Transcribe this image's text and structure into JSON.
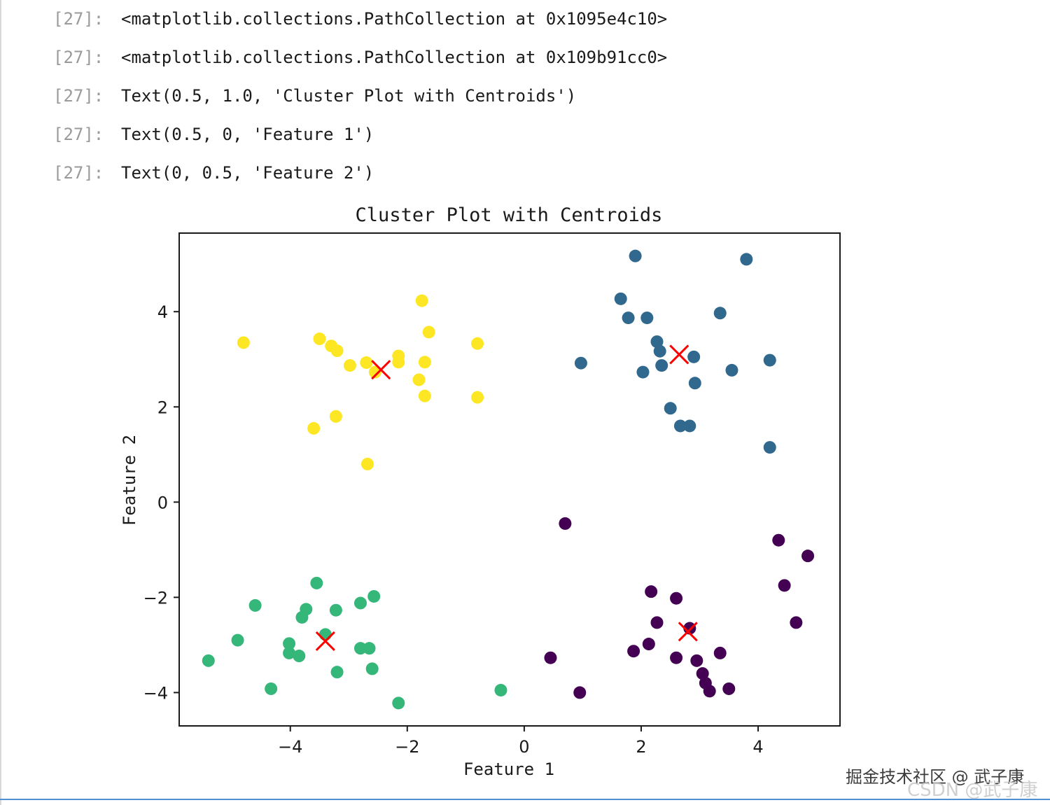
{
  "cell_outputs": [
    {
      "prompt": "[27]:",
      "text": "<matplotlib.collections.PathCollection at 0x1095e4c10>"
    },
    {
      "prompt": "[27]:",
      "text": "<matplotlib.collections.PathCollection at 0x109b91cc0>"
    },
    {
      "prompt": "[27]:",
      "text": "Text(0.5, 1.0, 'Cluster Plot with Centroids')"
    },
    {
      "prompt": "[27]:",
      "text": "Text(0.5, 0, 'Feature 1')"
    },
    {
      "prompt": "[27]:",
      "text": "Text(0, 0.5, 'Feature 2')"
    }
  ],
  "chart_data": {
    "type": "scatter",
    "title": "Cluster Plot with Centroids",
    "xlabel": "Feature 1",
    "ylabel": "Feature 2",
    "xlim": [
      -5.9,
      5.4
    ],
    "ylim": [
      -4.7,
      5.65
    ],
    "xticks": [
      -4,
      -2,
      0,
      2,
      4
    ],
    "yticks": [
      -4,
      -2,
      0,
      2,
      4
    ],
    "xtick_labels": [
      "−4",
      "−2",
      "0",
      "2",
      "4"
    ],
    "ytick_labels": [
      "−4",
      "−2",
      "0",
      "2",
      "4"
    ],
    "grid": false,
    "series": [
      {
        "color": "#fde725",
        "points": [
          [
            -4.8,
            3.35
          ],
          [
            -3.5,
            3.43
          ],
          [
            -3.3,
            3.28
          ],
          [
            -3.2,
            3.18
          ],
          [
            -2.98,
            2.87
          ],
          [
            -2.7,
            2.93
          ],
          [
            -2.55,
            2.73
          ],
          [
            -2.15,
            3.07
          ],
          [
            -2.15,
            2.94
          ],
          [
            -1.75,
            4.23
          ],
          [
            -1.63,
            3.57
          ],
          [
            -1.7,
            2.94
          ],
          [
            -1.8,
            2.57
          ],
          [
            -1.7,
            2.23
          ],
          [
            -0.8,
            3.33
          ],
          [
            -0.8,
            2.2
          ],
          [
            -3.6,
            1.55
          ],
          [
            -3.22,
            1.8
          ],
          [
            -2.68,
            0.8
          ]
        ]
      },
      {
        "color": "#31688e",
        "points": [
          [
            1.9,
            5.17
          ],
          [
            3.8,
            5.1
          ],
          [
            1.65,
            4.27
          ],
          [
            1.78,
            3.87
          ],
          [
            2.1,
            3.87
          ],
          [
            3.35,
            3.97
          ],
          [
            2.27,
            3.37
          ],
          [
            2.32,
            3.17
          ],
          [
            2.35,
            2.87
          ],
          [
            2.03,
            2.73
          ],
          [
            2.9,
            3.05
          ],
          [
            3.55,
            2.77
          ],
          [
            4.2,
            2.98
          ],
          [
            0.97,
            2.92
          ],
          [
            2.92,
            2.5
          ],
          [
            2.5,
            1.97
          ],
          [
            2.67,
            1.6
          ],
          [
            2.83,
            1.6
          ],
          [
            4.2,
            1.15
          ]
        ]
      },
      {
        "color": "#35b779",
        "points": [
          [
            -3.55,
            -1.7
          ],
          [
            -4.6,
            -2.17
          ],
          [
            -3.73,
            -2.25
          ],
          [
            -3.8,
            -2.42
          ],
          [
            -3.22,
            -2.27
          ],
          [
            -2.8,
            -2.12
          ],
          [
            -2.57,
            -1.98
          ],
          [
            -3.4,
            -2.78
          ],
          [
            -4.9,
            -2.9
          ],
          [
            -4.02,
            -2.97
          ],
          [
            -4.02,
            -3.17
          ],
          [
            -3.85,
            -3.23
          ],
          [
            -2.8,
            -3.07
          ],
          [
            -2.65,
            -3.07
          ],
          [
            -5.4,
            -3.33
          ],
          [
            -3.2,
            -3.57
          ],
          [
            -2.6,
            -3.5
          ],
          [
            -4.33,
            -3.92
          ],
          [
            -2.15,
            -4.22
          ],
          [
            -0.4,
            -3.95
          ]
        ]
      },
      {
        "color": "#440154",
        "points": [
          [
            0.7,
            -0.45
          ],
          [
            4.35,
            -0.8
          ],
          [
            4.85,
            -1.13
          ],
          [
            4.45,
            -1.75
          ],
          [
            2.17,
            -1.88
          ],
          [
            2.6,
            -2.02
          ],
          [
            2.27,
            -2.53
          ],
          [
            4.65,
            -2.53
          ],
          [
            2.83,
            -2.65
          ],
          [
            2.13,
            -2.98
          ],
          [
            1.87,
            -3.13
          ],
          [
            2.6,
            -3.27
          ],
          [
            2.95,
            -3.33
          ],
          [
            3.35,
            -3.17
          ],
          [
            0.45,
            -3.27
          ],
          [
            3.05,
            -3.6
          ],
          [
            3.1,
            -3.8
          ],
          [
            3.17,
            -3.97
          ],
          [
            3.5,
            -3.92
          ],
          [
            0.95,
            -4.0
          ]
        ]
      }
    ],
    "centroids": {
      "color": "#ff0000",
      "marker": "x",
      "points": [
        [
          -2.45,
          2.78
        ],
        [
          2.65,
          3.1
        ],
        [
          -3.4,
          -2.92
        ],
        [
          2.8,
          -2.72
        ]
      ]
    }
  },
  "watermark": {
    "text": "掘金技术社区 @ 武子康",
    "secondary": "CSDN @武子康"
  }
}
